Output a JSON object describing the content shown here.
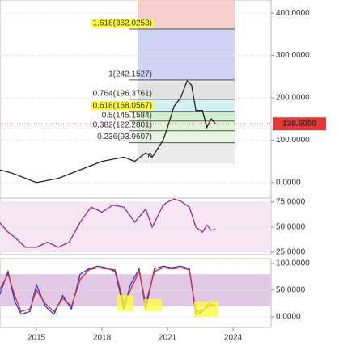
{
  "chart_data": [
    {
      "type": "line",
      "x": [
        2013.3,
        2013.7,
        2014,
        2014.5,
        2015,
        2015.5,
        2016,
        2016.5,
        2017,
        2017.5,
        2018,
        2018.5,
        2019,
        2019.5,
        2020,
        2020.3,
        2020.8,
        2021,
        2021.3,
        2021.6,
        2021.9,
        2022.1,
        2022.3,
        2022.6,
        2022.8,
        2023,
        2023.2
      ],
      "series": [
        {
          "color": "#222222",
          "values": [
            30,
            25,
            20,
            10,
            0,
            5,
            10,
            20,
            30,
            40,
            50,
            55,
            60,
            50,
            70,
            60,
            100,
            130,
            180,
            200,
            240,
            230,
            170,
            170,
            130,
            150,
            138.5
          ]
        }
      ],
      "xlim": [
        2013.33,
        2025.74
      ],
      "ylim": [
        -42.3,
        430.8
      ],
      "yticks": [
        {
          "value": 0,
          "label": "0.0000"
        },
        {
          "value": 100,
          "label": "100.0000"
        },
        {
          "value": 200,
          "label": "200.0000"
        },
        {
          "value": 300,
          "label": "300.0000"
        },
        {
          "value": 400,
          "label": "400.0000"
        }
      ],
      "fib_levels": [
        {
          "value": 362.0253,
          "label": "1.618(362.0253)",
          "color": "#f4c7c3",
          "highlight": true
        },
        {
          "value": 242.1527,
          "label": "1(242.1527)",
          "color": "#c9cbf3",
          "highlight": false
        },
        {
          "value": 196.3761,
          "label": "0.764(196.3761)",
          "color": "#dcdcdc",
          "highlight": false
        },
        {
          "value": 168.0567,
          "label": "0.618(168.0567)",
          "color": "#cdeef0",
          "highlight": true
        },
        {
          "value": 145.1584,
          "label": "0.5(145.1584)",
          "color": "#c8ecc8",
          "highlight": false
        },
        {
          "value": 122.2801,
          "label": "0.382(122.2801)",
          "color": "#d8f1d0",
          "highlight": false
        },
        {
          "value": 93.9607,
          "label": "0.236(93.9607)",
          "color": "#e4f3dc",
          "highlight": false
        },
        {
          "value": 48.19,
          "label": "0",
          "color": "#e6e6e6",
          "highlight": false
        }
      ],
      "last_price": {
        "value": 138.5,
        "label": "138.5000",
        "color": "#e53935"
      }
    },
    {
      "type": "line",
      "x": [
        2013.3,
        2013.7,
        2014,
        2014.5,
        2015,
        2015.5,
        2016,
        2016.5,
        2017,
        2017.5,
        2018,
        2018.5,
        2019,
        2019.5,
        2020,
        2020.3,
        2020.8,
        2021,
        2021.3,
        2021.6,
        2022,
        2022.3,
        2022.6,
        2022.8,
        2023,
        2023.2
      ],
      "series": [
        {
          "color": "#8e2a8e",
          "values": [
            55,
            45,
            40,
            30,
            30,
            35,
            30,
            35,
            55,
            70,
            65,
            72,
            70,
            55,
            68,
            50,
            72,
            75,
            78,
            76,
            70,
            50,
            45,
            52,
            47,
            48
          ]
        }
      ],
      "xlim": [
        2013.33,
        2025.74
      ],
      "ylim": [
        22.6,
        79
      ],
      "yticks": [
        {
          "value": 25,
          "label": "25.0000"
        },
        {
          "value": 50,
          "label": "50.0000"
        },
        {
          "value": 75,
          "label": "75.0000"
        }
      ],
      "band": [
        25,
        75
      ]
    },
    {
      "type": "line",
      "x": [
        2013.3,
        2013.7,
        2014,
        2014.3,
        2014.7,
        2015,
        2015.4,
        2015.8,
        2016.2,
        2016.6,
        2017,
        2017.4,
        2017.8,
        2018.2,
        2018.6,
        2019,
        2019.3,
        2019.7,
        2020,
        2020.4,
        2020.8,
        2021.2,
        2021.6,
        2022,
        2022.3,
        2022.6,
        2022.9,
        2023.2
      ],
      "series": [
        {
          "color": "#1e3fd0",
          "values": [
            40,
            85,
            30,
            5,
            10,
            60,
            20,
            5,
            40,
            15,
            80,
            90,
            95,
            92,
            85,
            15,
            60,
            90,
            15,
            90,
            95,
            92,
            95,
            90,
            5,
            10,
            25,
            20
          ]
        },
        {
          "color": "#d32f2f",
          "values": [
            50,
            80,
            40,
            10,
            15,
            50,
            25,
            10,
            35,
            20,
            70,
            88,
            92,
            90,
            88,
            25,
            50,
            85,
            25,
            85,
            92,
            90,
            92,
            88,
            10,
            12,
            20,
            22
          ]
        }
      ],
      "xlim": [
        2013.33,
        2025.74
      ],
      "ylim": [
        -19.7,
        109
      ],
      "yticks": [
        {
          "value": 0,
          "label": "0.0000"
        },
        {
          "value": 50,
          "label": "50.0000"
        },
        {
          "value": 100,
          "label": "100.0000"
        }
      ],
      "xticks": [
        2015,
        2018,
        2021,
        2024
      ],
      "band": [
        20,
        80
      ]
    }
  ]
}
